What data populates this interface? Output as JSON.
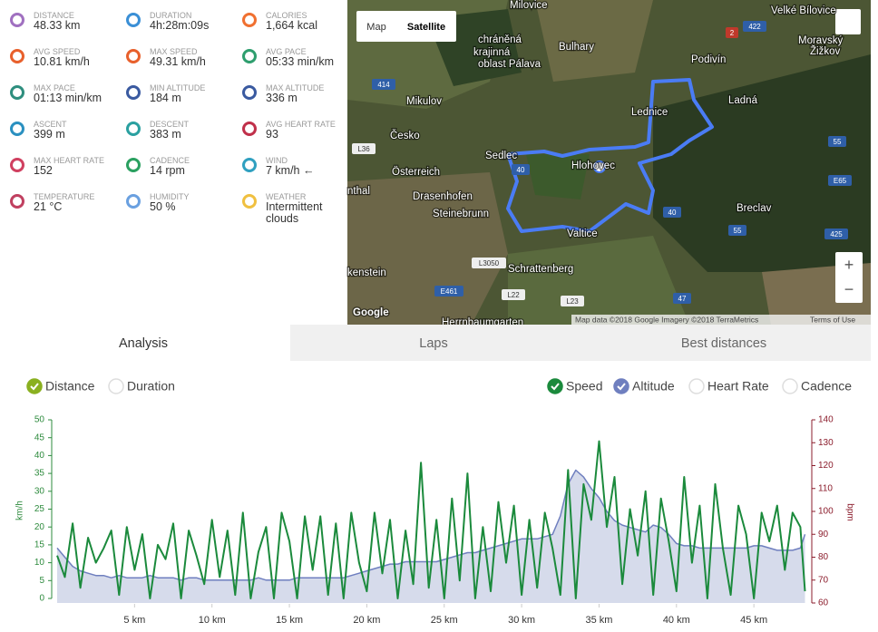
{
  "stats": [
    {
      "label": "DISTANCE",
      "value": "48.33 km",
      "color": "#a070c0"
    },
    {
      "label": "DURATION",
      "value": "4h:28m:09s",
      "color": "#3a8fd6"
    },
    {
      "label": "CALORIES",
      "value": "1,664 kcal",
      "color": "#f07030"
    },
    {
      "label": "AVG SPEED",
      "value": "10.81 km/h",
      "color": "#e8602c"
    },
    {
      "label": "MAX SPEED",
      "value": "49.31 km/h",
      "color": "#e8602c"
    },
    {
      "label": "AVG PACE",
      "value": "05:33 min/km",
      "color": "#2e9e6e"
    },
    {
      "label": "MAX PACE",
      "value": "01:13 min/km",
      "color": "#2e8e7e"
    },
    {
      "label": "MIN ALTITUDE",
      "value": "184 m",
      "color": "#3a5aa0"
    },
    {
      "label": "MAX ALTITUDE",
      "value": "336 m",
      "color": "#3a5aa0"
    },
    {
      "label": "ASCENT",
      "value": "399 m",
      "color": "#2a90c0"
    },
    {
      "label": "DESCENT",
      "value": "383 m",
      "color": "#2aa0a0"
    },
    {
      "label": "AVG HEART RATE",
      "value": "93",
      "color": "#c0304a"
    },
    {
      "label": "MAX HEART RATE",
      "value": "152",
      "color": "#d04060"
    },
    {
      "label": "CADENCE",
      "value": "14 rpm",
      "color": "#2aa060"
    },
    {
      "label": "WIND",
      "value": "7 km/h ←",
      "color": "#30a0c0"
    },
    {
      "label": "TEMPERATURE",
      "value": "21 °C",
      "color": "#c04060"
    },
    {
      "label": "HUMIDITY",
      "value": "50 %",
      "color": "#6aa0e0"
    },
    {
      "label": "WEATHER",
      "value": "Intermittent clouds",
      "color": "#f0c040"
    }
  ],
  "map": {
    "buttons": [
      "Map",
      "Satellite"
    ],
    "places": [
      "Milovice",
      "Velké Bílovice",
      "Moravský",
      "Žižkov",
      "chráněná",
      "krajinná",
      "oblast Pálava",
      "Bulhary",
      "Podivín",
      "Mikulov",
      "Ladná",
      "Lednice",
      "Česko",
      "Sedlec",
      "Hlohovec",
      "Österreich",
      "nthal",
      "Drasenhofen",
      "Steinebrunn",
      "Breclav",
      "Valtice",
      "Schrattenberg",
      "kenstein",
      "Herrnbaumgarten"
    ],
    "roads": [
      "414",
      "422",
      "2",
      "55",
      "E65",
      "40",
      "40",
      "55",
      "425",
      "L36",
      "L3050",
      "L22",
      "L23",
      "E461",
      "47"
    ],
    "zoom": [
      "+",
      "−"
    ],
    "logo": "Google",
    "attribution": "Map data ©2018 Google Imagery ©2018 TerraMetrics",
    "terms": "Terms of Use"
  },
  "tabs": [
    {
      "label": "Analysis",
      "active": true
    },
    {
      "label": "Laps",
      "active": false
    },
    {
      "label": "Best distances",
      "active": false
    }
  ],
  "chart_data": {
    "type": "line",
    "x_options": [
      {
        "label": "Distance",
        "checked": true,
        "color": "#8ab020"
      },
      {
        "label": "Duration",
        "checked": false,
        "color": "#8ab020"
      }
    ],
    "other_series": [
      "Heart Rate",
      "Cadence"
    ],
    "y_label": "km/h",
    "y2_label": "bpm",
    "y_color": "#2e8b3e",
    "y2_color": "#8b1d2c",
    "xlim": [
      0,
      48.33
    ],
    "xticks": [
      {
        "value": 5,
        "label": "5 km"
      },
      {
        "value": 10,
        "label": "10 km"
      },
      {
        "value": 15,
        "label": "15 km"
      },
      {
        "value": 20,
        "label": "20 km"
      },
      {
        "value": 25,
        "label": "25 km"
      },
      {
        "value": 30,
        "label": "30 km"
      },
      {
        "value": 35,
        "label": "35 km"
      },
      {
        "value": 40,
        "label": "40 km"
      },
      {
        "value": 45,
        "label": "45 km"
      }
    ],
    "ylim": [
      0,
      50
    ],
    "yticks": [
      0,
      5,
      10,
      15,
      20,
      25,
      30,
      35,
      40,
      45,
      50
    ],
    "y2lim": [
      60,
      140
    ],
    "y2ticks": [
      60,
      70,
      80,
      90,
      100,
      110,
      120,
      130,
      140
    ],
    "x": [
      0,
      0.5,
      1,
      1.5,
      2,
      2.5,
      3,
      3.5,
      4,
      4.5,
      5,
      5.5,
      6,
      6.5,
      7,
      7.5,
      8,
      8.5,
      9,
      9.5,
      10,
      10.5,
      11,
      11.5,
      12,
      12.5,
      13,
      13.5,
      14,
      14.5,
      15,
      15.5,
      16,
      16.5,
      17,
      17.5,
      18,
      18.5,
      19,
      19.5,
      20,
      20.5,
      21,
      21.5,
      22,
      22.5,
      23,
      23.5,
      24,
      24.5,
      25,
      25.5,
      26,
      26.5,
      27,
      27.5,
      28,
      28.5,
      29,
      29.5,
      30,
      30.5,
      31,
      31.5,
      32,
      32.5,
      33,
      33.5,
      34,
      34.5,
      35,
      35.5,
      36,
      36.5,
      37,
      37.5,
      38,
      38.5,
      39,
      39.5,
      40,
      40.5,
      41,
      41.5,
      42,
      42.5,
      43,
      43.5,
      44,
      44.5,
      45,
      45.5,
      46,
      46.5,
      47,
      47.5,
      48,
      48.3
    ],
    "series": [
      {
        "name": "Speed",
        "color": "#1b8a3c",
        "checked": true,
        "values": [
          12,
          6,
          21,
          3,
          17,
          10,
          14,
          19,
          1,
          20,
          8,
          18,
          0,
          15,
          11,
          21,
          0,
          19,
          12,
          4,
          22,
          6,
          19,
          1,
          24,
          0,
          13,
          20,
          0,
          24,
          16,
          0,
          23,
          8,
          23,
          1,
          21,
          0,
          24,
          10,
          2,
          24,
          7,
          22,
          0,
          19,
          4,
          38,
          3,
          22,
          0,
          28,
          5,
          35,
          0,
          20,
          2,
          27,
          10,
          26,
          1,
          22,
          3,
          24,
          14,
          1,
          36,
          0,
          32,
          22,
          44,
          20,
          34,
          4,
          25,
          12,
          30,
          1,
          28,
          16,
          2,
          34,
          10,
          26,
          0,
          32,
          14,
          1,
          26,
          18,
          0,
          24,
          16,
          26,
          8,
          24,
          20,
          2
        ]
      },
      {
        "name": "Altitude",
        "color": "#6f7fbf",
        "fill": "#d6dbeb",
        "axis": "y2",
        "checked": true,
        "values": [
          84,
          80,
          76,
          74,
          73,
          72,
          72,
          71,
          72,
          71,
          71,
          71,
          72,
          71,
          71,
          71,
          70,
          71,
          71,
          70,
          70,
          70,
          70,
          70,
          70,
          70,
          71,
          70,
          70,
          70,
          70,
          71,
          71,
          71,
          71,
          71,
          71,
          71,
          72,
          73,
          74,
          75,
          76,
          77,
          77,
          78,
          78,
          78,
          78,
          78,
          79,
          80,
          81,
          82,
          82,
          83,
          84,
          85,
          86,
          87,
          88,
          88,
          88,
          89,
          90,
          98,
          112,
          118,
          115,
          110,
          106,
          100,
          96,
          94,
          93,
          92,
          91,
          94,
          93,
          90,
          86,
          85,
          85,
          84,
          84,
          84,
          84,
          84,
          84,
          84,
          85,
          85,
          84,
          83,
          83,
          83,
          84,
          90
        ]
      }
    ]
  }
}
